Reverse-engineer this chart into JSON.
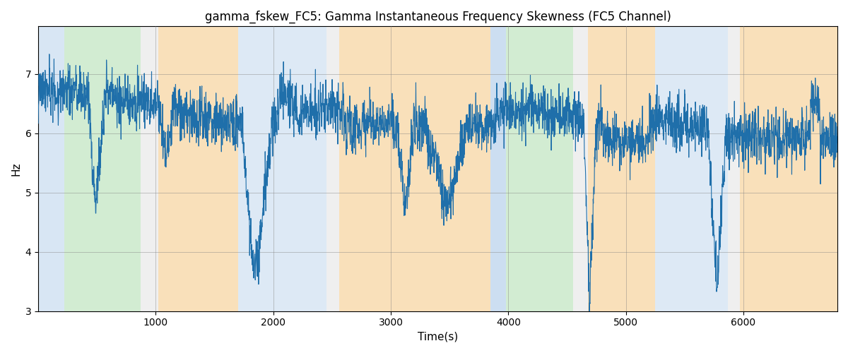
{
  "title": "gamma_fskew_FC5: Gamma Instantaneous Frequency Skewness (FC5 Channel)",
  "xlabel": "Time(s)",
  "ylabel": "Hz",
  "xlim": [
    0,
    6800
  ],
  "ylim": [
    3,
    7.8
  ],
  "figsize": [
    12,
    5
  ],
  "dpi": 100,
  "line_color": "#1f6faa",
  "line_width": 0.8,
  "background_color": "#ffffff",
  "bands": [
    {
      "xmin": 0,
      "xmax": 220,
      "color": "#aac8e8",
      "alpha": 0.45
    },
    {
      "xmin": 220,
      "xmax": 870,
      "color": "#90d090",
      "alpha": 0.4
    },
    {
      "xmin": 870,
      "xmax": 1020,
      "color": "#c0c0c0",
      "alpha": 0.25
    },
    {
      "xmin": 1020,
      "xmax": 1700,
      "color": "#f5c882",
      "alpha": 0.55
    },
    {
      "xmin": 1700,
      "xmax": 2450,
      "color": "#aac8e8",
      "alpha": 0.4
    },
    {
      "xmin": 2450,
      "xmax": 2560,
      "color": "#c0c0c0",
      "alpha": 0.25
    },
    {
      "xmin": 2560,
      "xmax": 3850,
      "color": "#f5c882",
      "alpha": 0.55
    },
    {
      "xmin": 3850,
      "xmax": 3980,
      "color": "#aac8e8",
      "alpha": 0.6
    },
    {
      "xmin": 3980,
      "xmax": 4550,
      "color": "#90d090",
      "alpha": 0.4
    },
    {
      "xmin": 4550,
      "xmax": 4680,
      "color": "#c0c0c0",
      "alpha": 0.25
    },
    {
      "xmin": 4680,
      "xmax": 5250,
      "color": "#f5c882",
      "alpha": 0.55
    },
    {
      "xmin": 5250,
      "xmax": 5870,
      "color": "#aac8e8",
      "alpha": 0.4
    },
    {
      "xmin": 5870,
      "xmax": 5970,
      "color": "#c0c0c0",
      "alpha": 0.25
    },
    {
      "xmin": 5970,
      "xmax": 6800,
      "color": "#f5c882",
      "alpha": 0.55
    }
  ],
  "yticks": [
    3,
    4,
    5,
    6,
    7
  ],
  "xticks": [
    1000,
    2000,
    3000,
    4000,
    5000,
    6000
  ]
}
